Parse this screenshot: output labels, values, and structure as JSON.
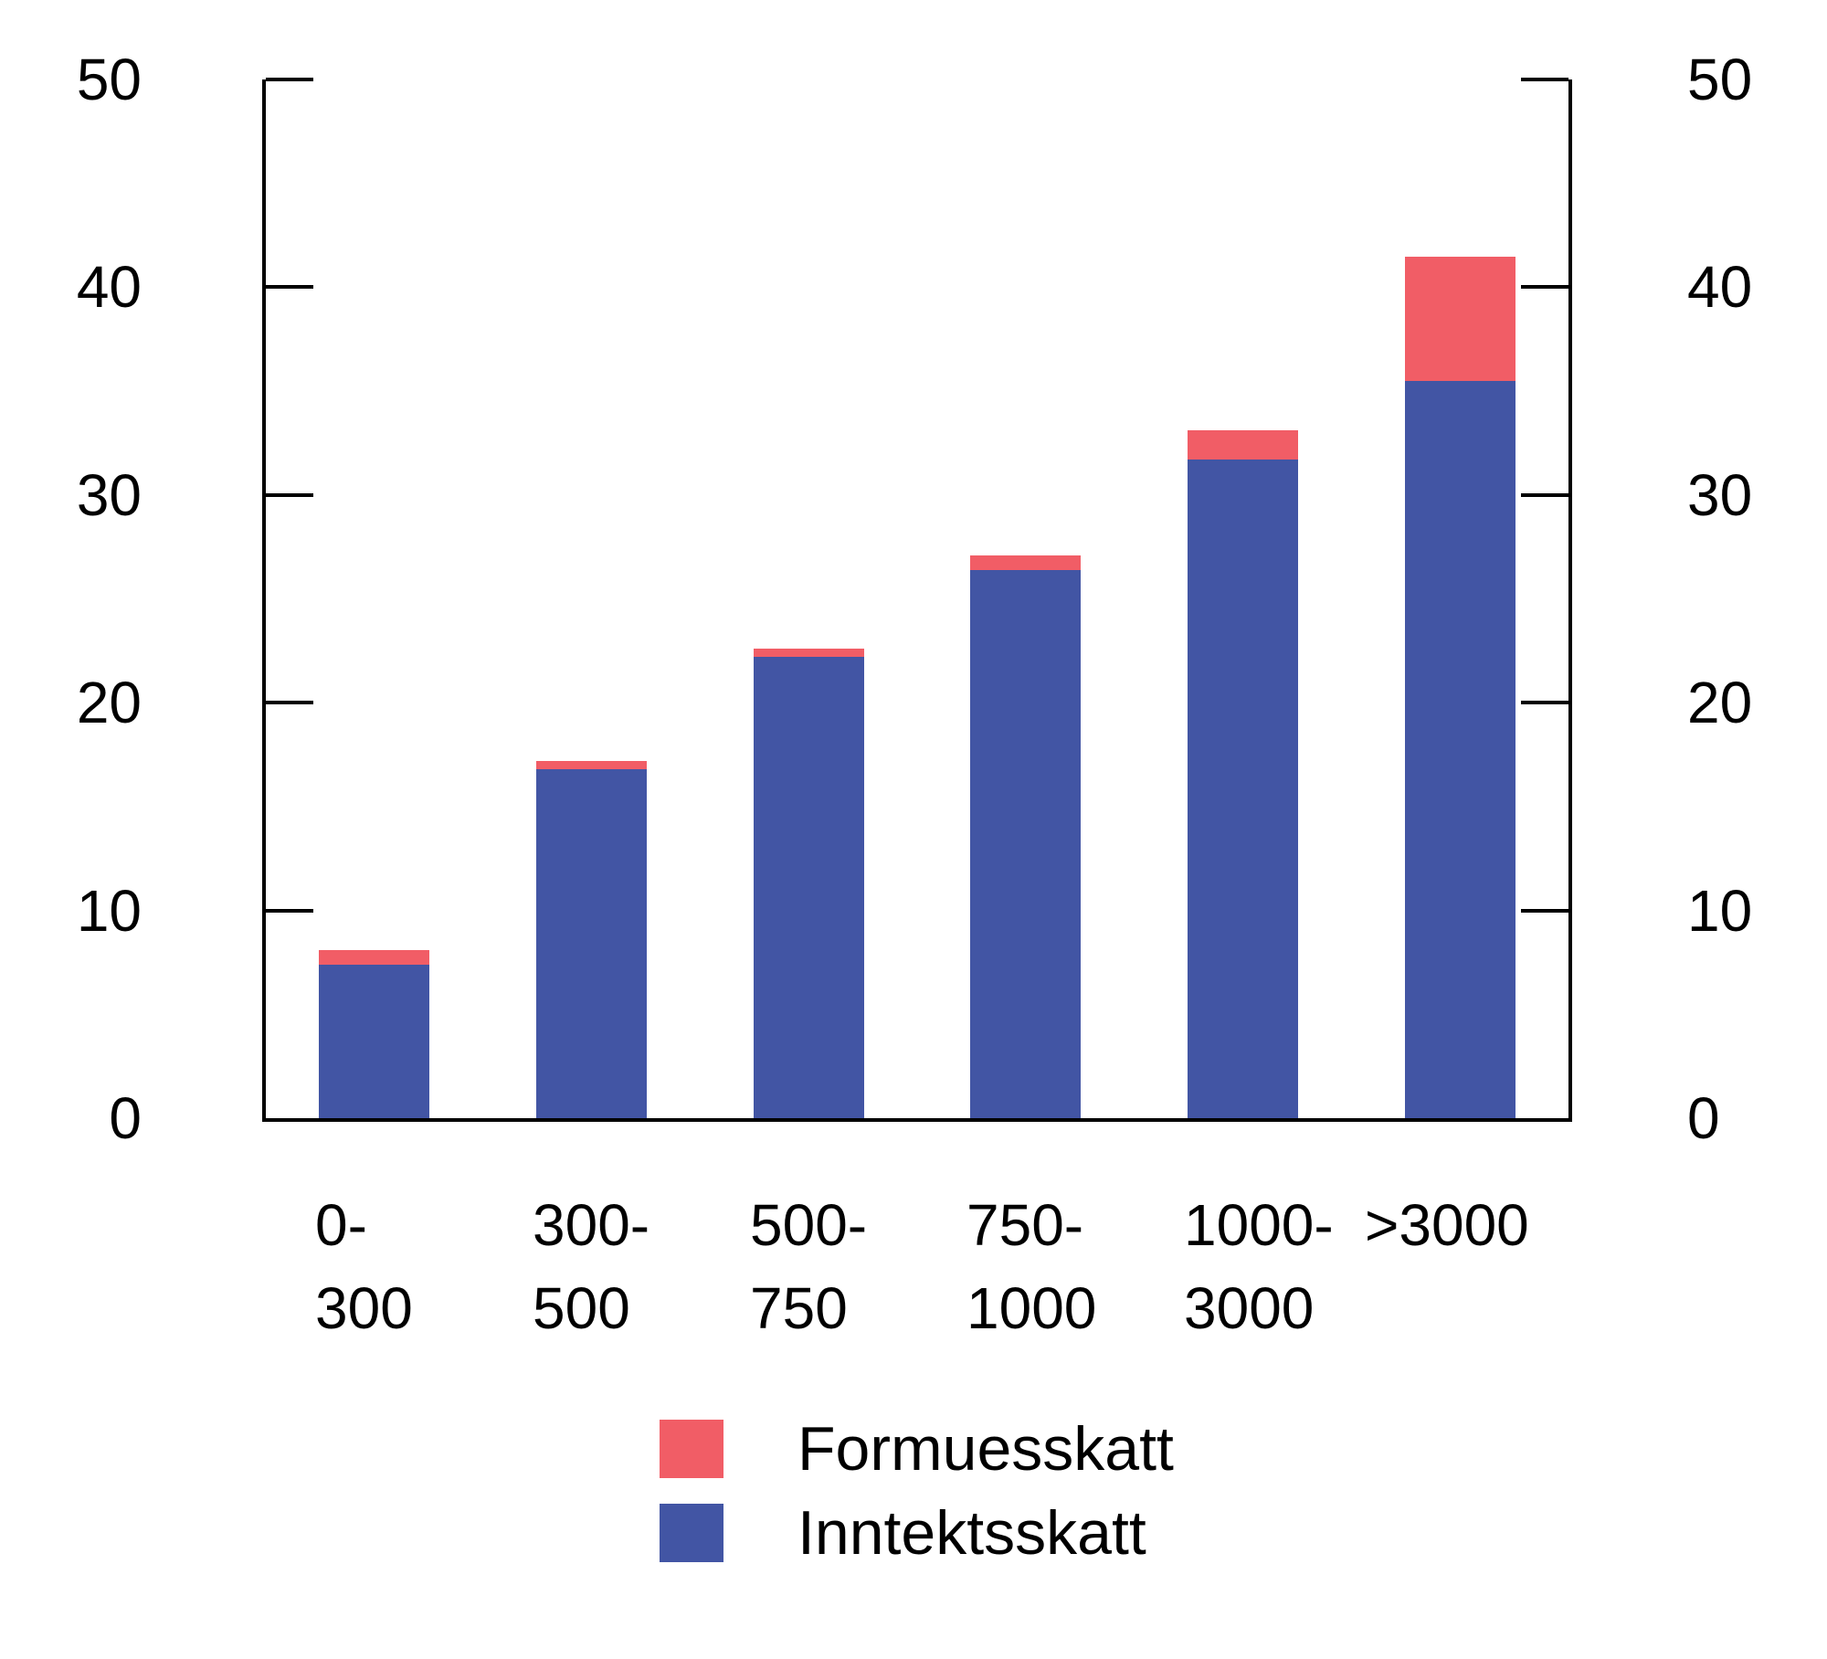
{
  "chart_data": {
    "type": "bar",
    "stacked": true,
    "title": "",
    "xlabel": "",
    "ylabel": "",
    "categories": [
      [
        "0-",
        "300"
      ],
      [
        "300-",
        "500"
      ],
      [
        "500-",
        "750"
      ],
      [
        "750-",
        "1000"
      ],
      [
        "1000-",
        "3000"
      ],
      [
        ">3000"
      ]
    ],
    "series": [
      {
        "name": "Formuesskatt",
        "color": "#F15D66",
        "values": [
          0.7,
          0.4,
          0.4,
          0.7,
          1.4,
          6.0
        ]
      },
      {
        "name": "Inntektsskatt",
        "color": "#4255A4",
        "values": [
          7.4,
          16.8,
          22.2,
          26.4,
          31.7,
          35.5
        ]
      }
    ],
    "stacked_totals": [
      8.1,
      17.2,
      22.6,
      27.1,
      33.1,
      41.5
    ],
    "y_axis": {
      "min": 0,
      "max": 50,
      "ticks": [
        0,
        10,
        20,
        30,
        40,
        50
      ]
    },
    "right_y_axis": {
      "min": 0,
      "max": 50,
      "ticks": [
        0,
        10,
        20,
        30,
        40,
        50
      ]
    },
    "grid": false,
    "legend_position": "bottom",
    "axis_color": "#000000"
  }
}
